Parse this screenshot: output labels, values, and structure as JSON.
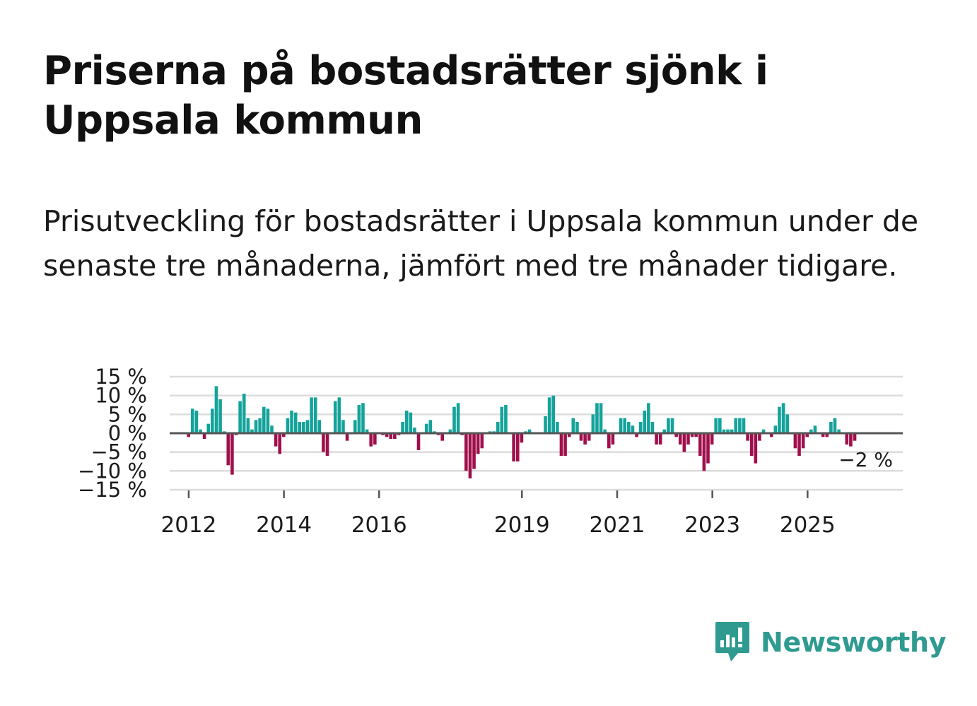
{
  "title": "Priserna på bostadsrätter sjönk i Uppsala kommun",
  "subtitle": "Prisutveckling för bostadsrätter i Uppsala kommun under de senaste tre månaderna, jämfört med tre månader tidigare.",
  "brand": {
    "name": "Newsworthy",
    "icon": "newsworthy-chart-bubble-icon",
    "color": "#2e9a90"
  },
  "colors": {
    "positive": "#13a39a",
    "negative": "#a00f4b",
    "grid": "#dcdcdc",
    "zero": "#555555"
  },
  "chart_data": {
    "type": "bar",
    "unit": "%",
    "x_start": 2011.33,
    "x_step": 0.0833,
    "ylim": [
      -15,
      15
    ],
    "yticks": [
      15,
      10,
      5,
      0,
      -5,
      -10,
      -15
    ],
    "ytick_labels": [
      "15 %",
      "10 %",
      "5 %",
      "0 %",
      "−5 %",
      "−10 %",
      "−15 %"
    ],
    "xlim": [
      2011.6,
      2027.0
    ],
    "xticks": [
      2012,
      2014,
      2016,
      2019,
      2021,
      2023,
      2025
    ],
    "xtick_labels": [
      "2012",
      "2014",
      "2016",
      "2019",
      "2021",
      "2023",
      "2025"
    ],
    "values": [
      0,
      0,
      0,
      0,
      0,
      0,
      0,
      0,
      -1,
      6.5,
      6,
      1,
      -1.5,
      2.5,
      6.5,
      12.5,
      9,
      0.5,
      -8.5,
      -11,
      -0.5,
      8.5,
      10.5,
      4,
      1,
      3.5,
      4,
      7,
      6.5,
      2,
      -3.5,
      -5.5,
      -1,
      4,
      6,
      5.5,
      3,
      3,
      3.5,
      9.5,
      9.5,
      3.5,
      -5,
      -6,
      0,
      8.5,
      9.5,
      3.5,
      -2,
      0,
      3.5,
      7.5,
      8,
      1,
      -3.5,
      -3,
      0,
      -0.5,
      -1,
      -1.5,
      -1.5,
      -0.5,
      3,
      6,
      5.5,
      1.5,
      -4.5,
      0,
      2.5,
      3.5,
      0.5,
      -0.5,
      -2,
      0,
      1,
      7,
      8,
      -0.5,
      -10,
      -12,
      -9.5,
      -5.5,
      -4,
      0,
      0.5,
      0.5,
      3,
      7,
      7.5,
      0,
      -7.5,
      -7.5,
      -2.5,
      0.5,
      1,
      0,
      0,
      0,
      4.5,
      9.5,
      10,
      3,
      -6,
      -6,
      -1,
      4,
      3,
      -2,
      -3,
      -2,
      5,
      8,
      8,
      1,
      -4,
      -3,
      0,
      4,
      4,
      3,
      2,
      -1,
      3,
      6,
      8,
      3,
      -3,
      -3,
      1,
      4,
      4,
      -1,
      -3,
      -5,
      -3,
      -1,
      -1,
      -6,
      -10,
      -8,
      -3,
      4,
      4,
      1,
      1,
      1,
      4,
      4,
      4,
      -2,
      -6,
      -8,
      -2,
      1,
      0,
      -1,
      2,
      7,
      8,
      5,
      0,
      -4,
      -6,
      -4,
      -1,
      1,
      2,
      0,
      -1,
      -1,
      3,
      4,
      1,
      0,
      -3,
      -3.5,
      -2,
      0,
      0,
      0,
      0,
      0
    ],
    "end_label": "−2 %"
  }
}
